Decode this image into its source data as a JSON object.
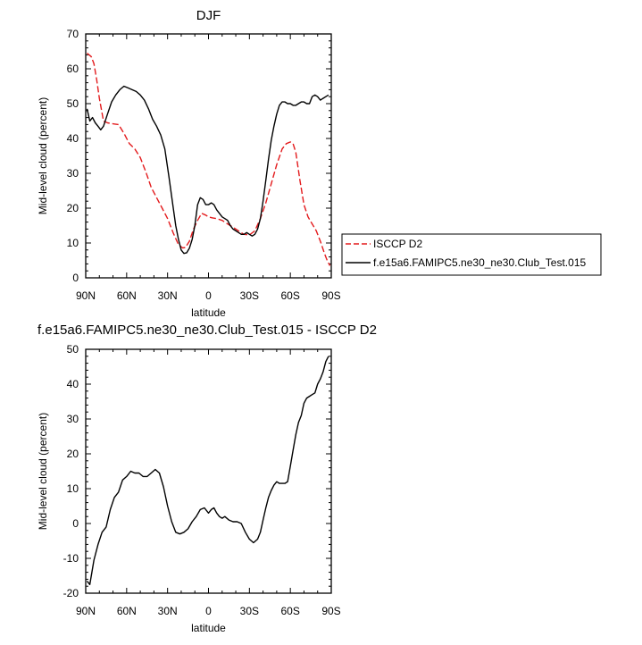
{
  "chart_data": [
    {
      "type": "line",
      "title": "DJF",
      "xlabel": "latitude",
      "ylabel": "Mid-level cloud (percent)",
      "xlim": [
        90,
        -90
      ],
      "ylim": [
        0,
        70
      ],
      "x_ticks": [
        {
          "value": 90,
          "label": "90N"
        },
        {
          "value": 60,
          "label": "60N"
        },
        {
          "value": 30,
          "label": "30N"
        },
        {
          "value": 0,
          "label": "0"
        },
        {
          "value": -30,
          "label": "30S"
        },
        {
          "value": -60,
          "label": "60S"
        },
        {
          "value": -90,
          "label": "90S"
        }
      ],
      "y_ticks": [
        0,
        10,
        20,
        30,
        40,
        50,
        60,
        70
      ],
      "legend_position": "outside-right",
      "series": [
        {
          "name": "ISCCP D2",
          "color": "#e31a1c",
          "dash": "dashed",
          "x": [
            89,
            86,
            84,
            82,
            80,
            77,
            74,
            70,
            66,
            62,
            58,
            54,
            50,
            46,
            42,
            38,
            34,
            30,
            26,
            22,
            19,
            17,
            14,
            11,
            8,
            5,
            2,
            0,
            -3,
            -6,
            -10,
            -14,
            -18,
            -22,
            -26,
            -30,
            -34,
            -38,
            -42,
            -46,
            -50,
            -54,
            -57,
            -60,
            -62,
            -64,
            -67,
            -70,
            -73,
            -76,
            -79,
            -82,
            -85,
            -87,
            -89
          ],
          "values": [
            64.5,
            63.5,
            61.5,
            57,
            51.5,
            45,
            44.5,
            44.2,
            44,
            41.5,
            38.5,
            37,
            34.5,
            30.5,
            26,
            23,
            20,
            17,
            13,
            9.5,
            8.6,
            8.7,
            10.5,
            14,
            16.5,
            18.5,
            18,
            17.5,
            17.2,
            17,
            16.5,
            15.5,
            14.5,
            13.5,
            12.5,
            12.3,
            13.5,
            17,
            21.5,
            27,
            32.5,
            37,
            38.5,
            39,
            38.5,
            36,
            28,
            21,
            17.5,
            15.5,
            13.5,
            10.5,
            7,
            5,
            3.5
          ]
        },
        {
          "name": "f.e15a6.FAMIPC5.ne30_ne30.Club_Test.015",
          "color": "#000000",
          "dash": "solid",
          "x": [
            89,
            87,
            85,
            83,
            81,
            79,
            77,
            74,
            71,
            68,
            65,
            62,
            59,
            56,
            53,
            50,
            47,
            44,
            41,
            38,
            35,
            32,
            29,
            26,
            24,
            22,
            20,
            18,
            16,
            14,
            12,
            10,
            8,
            6,
            4,
            2,
            0,
            -2,
            -4,
            -6,
            -8,
            -10,
            -12,
            -14,
            -16,
            -18,
            -20,
            -22,
            -24,
            -26,
            -28,
            -30,
            -32,
            -34,
            -36,
            -38,
            -40,
            -42,
            -44,
            -46,
            -48,
            -50,
            -52,
            -54,
            -56,
            -58,
            -60,
            -62,
            -64,
            -66,
            -68,
            -70,
            -72,
            -74,
            -76,
            -78,
            -80,
            -82,
            -84,
            -86,
            -88
          ],
          "values": [
            48.5,
            45,
            46,
            44.5,
            43.5,
            42.5,
            43.5,
            47,
            50.5,
            52.5,
            54,
            55,
            54.5,
            54,
            53.5,
            52.5,
            51,
            48.5,
            45.5,
            43.5,
            41,
            37,
            29,
            20.5,
            15,
            11,
            8,
            7,
            7.2,
            8.5,
            11,
            15,
            21,
            23,
            22.5,
            21,
            21,
            21.5,
            21,
            19.5,
            18.5,
            17.5,
            17,
            16.5,
            15,
            14,
            13.5,
            13,
            12.5,
            12.5,
            13,
            12.5,
            12,
            12.5,
            14,
            17,
            22,
            28,
            34,
            39.5,
            43.5,
            47,
            49.5,
            50.5,
            50.5,
            50,
            50,
            49.5,
            49.5,
            50,
            50.5,
            50.5,
            50,
            50,
            52,
            52.5,
            52,
            51,
            51.5,
            52,
            52.5
          ]
        }
      ]
    },
    {
      "type": "line",
      "title": "f.e15a6.FAMIPC5.ne30_ne30.Club_Test.015 - ISCCP D2",
      "xlabel": "latitude",
      "ylabel": "Mid-level cloud (percent)",
      "xlim": [
        90,
        -90
      ],
      "ylim": [
        -20,
        50
      ],
      "x_ticks": [
        {
          "value": 90,
          "label": "90N"
        },
        {
          "value": 60,
          "label": "60N"
        },
        {
          "value": 30,
          "label": "30N"
        },
        {
          "value": 0,
          "label": "0"
        },
        {
          "value": -30,
          "label": "30S"
        },
        {
          "value": -60,
          "label": "60S"
        },
        {
          "value": -90,
          "label": "90S"
        }
      ],
      "y_ticks": [
        -20,
        -10,
        0,
        10,
        20,
        30,
        40,
        50
      ],
      "series": [
        {
          "color": "#000000",
          "dash": "solid",
          "x": [
            89,
            87,
            84,
            81,
            78,
            75,
            72,
            69,
            66,
            63,
            60,
            57,
            54,
            51,
            48,
            45,
            42,
            39,
            36,
            33,
            30,
            27,
            24,
            21,
            18,
            15,
            12,
            9,
            6,
            3,
            0,
            -2,
            -4,
            -6,
            -8,
            -10,
            -12,
            -15,
            -18,
            -21,
            -24,
            -27,
            -30,
            -33,
            -36,
            -38,
            -40,
            -42,
            -44,
            -46,
            -48,
            -50,
            -52,
            -54,
            -56,
            -58,
            -60,
            -62,
            -64,
            -66,
            -68,
            -70,
            -72,
            -74,
            -76,
            -78,
            -80,
            -82,
            -84,
            -86,
            -88
          ],
          "values": [
            -16.5,
            -17.5,
            -10.5,
            -6,
            -2.5,
            -1,
            4,
            7.5,
            9,
            12.5,
            13.5,
            15,
            14.5,
            14.5,
            13.5,
            13.5,
            14.5,
            15.5,
            14.5,
            10.5,
            5,
            0.5,
            -2.5,
            -3,
            -2.5,
            -1.5,
            0.5,
            2,
            4,
            4.5,
            3,
            4,
            4.5,
            3,
            2,
            1.5,
            2,
            1,
            0.5,
            0.5,
            0,
            -2.5,
            -4.5,
            -5.5,
            -4.5,
            -2.5,
            1,
            4.5,
            7.5,
            9.5,
            11,
            12,
            11.5,
            11.5,
            11.5,
            12,
            16.5,
            21,
            25.5,
            29,
            31,
            34.5,
            36,
            36.5,
            37,
            37.5,
            40,
            41.5,
            43.5,
            46.5,
            48
          ]
        }
      ]
    }
  ]
}
